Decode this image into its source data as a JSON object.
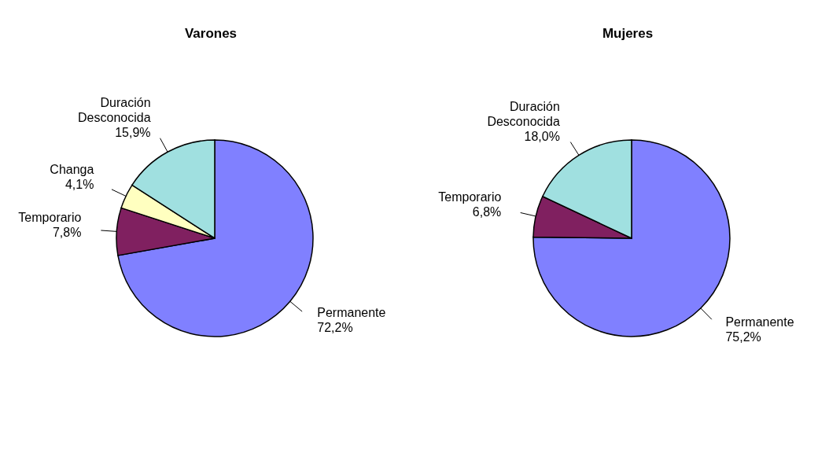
{
  "chart_data": [
    {
      "type": "pie",
      "title": "Varones",
      "categories": [
        "Permanente",
        "Temporario",
        "Changa",
        "Duración Desconocida"
      ],
      "values": [
        72.2,
        7.8,
        4.1,
        15.9
      ],
      "value_labels": [
        "72,2%",
        "7,8%",
        "4,1%",
        "15,9%"
      ],
      "colors": [
        "#8080ff",
        "#802060",
        "#ffffc0",
        "#a0e0e0"
      ],
      "legend": false
    },
    {
      "type": "pie",
      "title": "Mujeres",
      "categories": [
        "Permanente",
        "Temporario",
        "Duración Desconocida"
      ],
      "values": [
        75.2,
        6.8,
        18.0
      ],
      "value_labels": [
        "75,2%",
        "6,8%",
        "18,0%"
      ],
      "colors": [
        "#8080ff",
        "#802060",
        "#a0e0e0"
      ],
      "legend": false
    }
  ]
}
